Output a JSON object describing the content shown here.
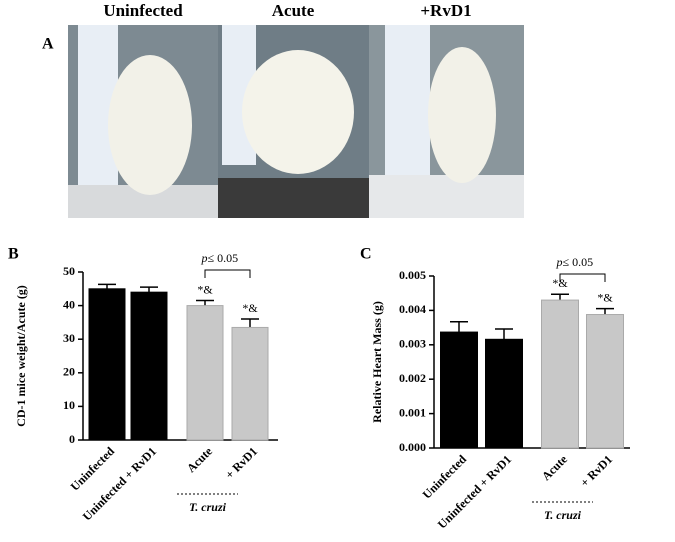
{
  "panel_a": {
    "label": "A",
    "photos": [
      "Uninfected",
      "Acute",
      "+RvD1"
    ]
  },
  "chart_data": [
    {
      "type": "bar",
      "panel": "B",
      "y_label": "CD-1 mice weight/Acute (g)",
      "categories": [
        "Uninfected",
        "Uninfected + RvD1",
        "Acute",
        "+ RvD1"
      ],
      "values": [
        45,
        44,
        40,
        33.5
      ],
      "errors": [
        1.3,
        1.5,
        1.5,
        2.5
      ],
      "colors": [
        "#000000",
        "#000000",
        "#c8c8c8",
        "#c8c8c8"
      ],
      "markers": [
        null,
        null,
        "*&",
        "*&"
      ],
      "comparison": {
        "symbol": "p",
        "text": "≤ 0.05"
      },
      "group_label": "T. cruzi",
      "ylim": [
        0,
        50
      ],
      "yticks": [
        0,
        10,
        20,
        30,
        40,
        50
      ]
    },
    {
      "type": "bar",
      "panel": "C",
      "y_label": "Relative Heart Mass (g)",
      "categories": [
        "Uninfected",
        "Uninfected + RvD1",
        "Acute",
        "+ RvD1"
      ],
      "values": [
        0.00337,
        0.00316,
        0.0043,
        0.00388
      ],
      "errors": [
        0.0003,
        0.0003,
        0.00017,
        0.00017
      ],
      "colors": [
        "#000000",
        "#000000",
        "#c8c8c8",
        "#c8c8c8"
      ],
      "markers": [
        null,
        null,
        "*&",
        "*&"
      ],
      "comparison": {
        "symbol": "p",
        "text": "≤ 0.05"
      },
      "group_label": "T. cruzi",
      "ylim": [
        0,
        0.005
      ],
      "yticks": [
        {
          "value": 0,
          "label": "0.000"
        },
        {
          "value": 0.001,
          "label": "0.001"
        },
        {
          "value": 0.002,
          "label": "0.002"
        },
        {
          "value": 0.003,
          "label": "0.003"
        },
        {
          "value": 0.004,
          "label": "0.004"
        },
        {
          "value": 0.005,
          "label": "0.005"
        }
      ]
    }
  ]
}
